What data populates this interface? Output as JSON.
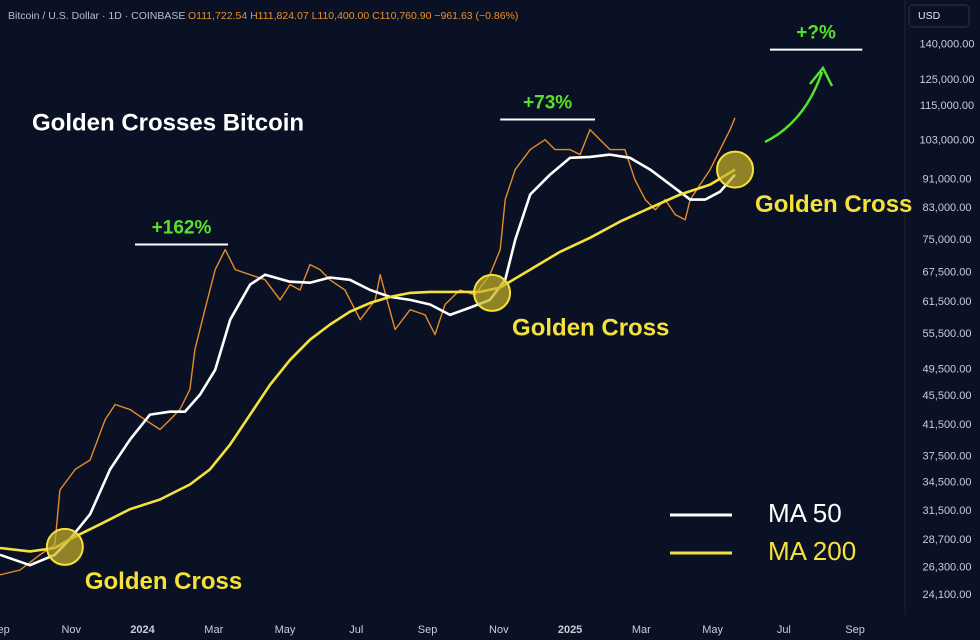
{
  "chart_data": {
    "type": "line",
    "header": "Bitcoin / U.S. Dollar · 1D · COINBASE",
    "quote": "O111,722.54 H111,824.07 L110,400.00 C110,760.90 −961.63 (−0.86%)",
    "currency": "USD",
    "title": "Golden Crosses Bitcoin",
    "log_y": true,
    "grid": false,
    "legend": "bottom-right",
    "xlim": [
      0,
      25.4
    ],
    "xticks": [
      {
        "value": 0,
        "label": "Sep"
      },
      {
        "value": 2,
        "label": "Nov"
      },
      {
        "value": 4,
        "label": "2024"
      },
      {
        "value": 6,
        "label": "Mar"
      },
      {
        "value": 8,
        "label": "May"
      },
      {
        "value": 10,
        "label": "Jul"
      },
      {
        "value": 12,
        "label": "Sep"
      },
      {
        "value": 14,
        "label": "Nov"
      },
      {
        "value": 16,
        "label": "2025"
      },
      {
        "value": 18,
        "label": "Mar"
      },
      {
        "value": 20,
        "label": "May"
      },
      {
        "value": 22,
        "label": "Jul"
      },
      {
        "value": 24,
        "label": "Sep"
      }
    ],
    "ylim": [
      22600,
      161500
    ],
    "yticks": [
      {
        "value": 140000,
        "label": "140,000.00"
      },
      {
        "value": 125000,
        "label": "125,000.00"
      },
      {
        "value": 115000,
        "label": "115,000.00"
      },
      {
        "value": 103000,
        "label": "103,000.00"
      },
      {
        "value": 91000,
        "label": "91,000.00"
      },
      {
        "value": 83000,
        "label": "83,000.00"
      },
      {
        "value": 75000,
        "label": "75,000.00"
      },
      {
        "value": 67500,
        "label": "67,500.00"
      },
      {
        "value": 61500,
        "label": "61,500.00"
      },
      {
        "value": 55500,
        "label": "55,500.00"
      },
      {
        "value": 49500,
        "label": "49,500.00"
      },
      {
        "value": 45500,
        "label": "45,500.00"
      },
      {
        "value": 41500,
        "label": "41,500.00"
      },
      {
        "value": 37500,
        "label": "37,500.00"
      },
      {
        "value": 34500,
        "label": "34,500.00"
      },
      {
        "value": 31500,
        "label": "31,500.00"
      },
      {
        "value": 28700,
        "label": "28,700.00"
      },
      {
        "value": 26300,
        "label": "26,300.00"
      },
      {
        "value": 24100,
        "label": "24,100.00"
      }
    ],
    "series": [
      {
        "color": "#e38b2c",
        "x": [
          0,
          0.56,
          1.12,
          1.54,
          1.68,
          2.11,
          2.53,
          2.95,
          3.23,
          3.65,
          4.07,
          4.49,
          4.77,
          5.05,
          5.33,
          5.47,
          5.75,
          6.04,
          6.32,
          6.6,
          7.02,
          7.44,
          7.86,
          8.14,
          8.42,
          8.7,
          8.98,
          9.26,
          9.68,
          10.11,
          10.53,
          10.67,
          11.09,
          11.51,
          11.93,
          12.21,
          12.49,
          12.91,
          13.33,
          13.75,
          14.04,
          14.18,
          14.46,
          14.88,
          15.3,
          15.58,
          16,
          16.28,
          16.56,
          16.84,
          17.12,
          17.54,
          17.82,
          18.11,
          18.39,
          18.67,
          18.95,
          19.23,
          19.37,
          19.65,
          19.93,
          20.21,
          20.49,
          20.63
        ],
        "values": [
          25700,
          26100,
          27400,
          28300,
          33700,
          36000,
          37100,
          42200,
          44300,
          43600,
          42200,
          40900,
          42200,
          43600,
          46500,
          52800,
          60000,
          68200,
          72700,
          68200,
          67100,
          66000,
          61900,
          65000,
          63900,
          69300,
          68200,
          66000,
          63900,
          58100,
          61900,
          67100,
          56300,
          60000,
          59000,
          55400,
          61000,
          63900,
          62900,
          67100,
          72700,
          85300,
          93900,
          100100,
          103300,
          100100,
          100100,
          98500,
          106700,
          103300,
          100100,
          100100,
          90900,
          85300,
          82600,
          85300,
          81300,
          80000,
          85300,
          89500,
          93900,
          100100,
          106700,
          110800
        ]
      },
      {
        "name": "MA 50",
        "color": "#ffffff",
        "x": [
          0,
          0.84,
          1.54,
          1.96,
          2.53,
          3.09,
          3.65,
          4.21,
          4.77,
          5.19,
          5.61,
          6.04,
          6.46,
          7.02,
          7.44,
          8.14,
          8.7,
          9.26,
          9.82,
          10.39,
          10.95,
          11.51,
          12.07,
          12.63,
          13.19,
          13.75,
          14.18,
          14.46,
          14.88,
          15.44,
          16,
          16.56,
          17.12,
          17.68,
          18.25,
          18.81,
          19.37,
          19.79,
          20.21,
          20.63
        ],
        "values": [
          27400,
          26500,
          27400,
          28800,
          31200,
          36000,
          39600,
          42900,
          43300,
          43300,
          45700,
          49500,
          58100,
          65000,
          67100,
          65600,
          65400,
          66500,
          66000,
          63900,
          62500,
          61900,
          61000,
          59000,
          60400,
          61900,
          66000,
          75000,
          86700,
          92400,
          97500,
          97800,
          98500,
          97500,
          93900,
          89500,
          85300,
          85300,
          87500,
          92400
        ]
      },
      {
        "name": "MA 200",
        "color": "#f5e13c",
        "x": [
          0,
          0.84,
          1.54,
          1.96,
          2.81,
          3.65,
          4.49,
          5.33,
          5.89,
          6.46,
          7.02,
          7.58,
          8.14,
          8.7,
          9.26,
          9.82,
          10.39,
          10.95,
          11.51,
          12.07,
          12.91,
          13.47,
          14.04,
          14.88,
          15.72,
          16.56,
          17.4,
          18.25,
          19.09,
          19.93,
          20.63
        ],
        "values": [
          28000,
          27700,
          28000,
          28800,
          30200,
          31700,
          32700,
          34300,
          36000,
          39000,
          42900,
          47200,
          51100,
          54500,
          57200,
          59600,
          61300,
          62500,
          63300,
          63500,
          63500,
          63500,
          64400,
          68200,
          72200,
          75500,
          79500,
          83100,
          86700,
          89500,
          93900
        ]
      }
    ],
    "crosses": [
      {
        "text": "Golden Cross",
        "x": 1.82,
        "y": 28100
      },
      {
        "text": "Golden Cross",
        "x": 13.81,
        "y": 63300
      },
      {
        "text": "Golden Cross",
        "x": 20.63,
        "y": 93900
      }
    ],
    "gains": [
      {
        "text": "+162%",
        "x": [
          3.79,
          6.4
        ],
        "y": 73900
      },
      {
        "text": "+73%",
        "x": [
          14.04,
          16.7
        ],
        "y": 110200
      },
      {
        "text": "+?%",
        "x": [
          21.61,
          24.2
        ],
        "y": 137800
      }
    ]
  }
}
